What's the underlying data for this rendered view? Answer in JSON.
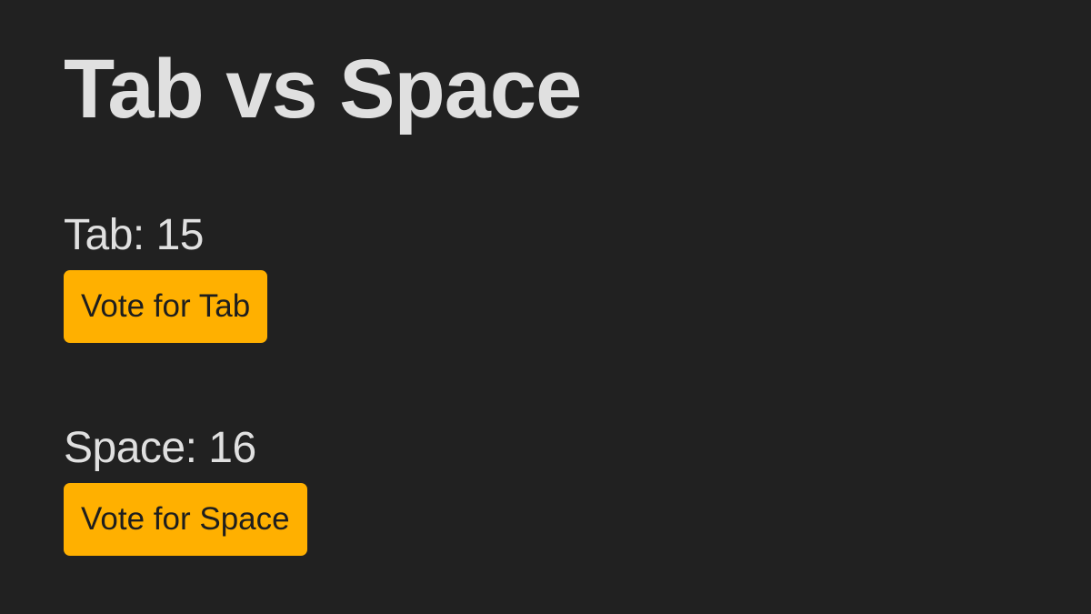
{
  "title": "Tab vs Space",
  "accent_color": "#ffb000",
  "background_color": "#212121",
  "options": [
    {
      "label": "Tab",
      "separator": ": ",
      "count": "15",
      "button_label": "Vote for Tab"
    },
    {
      "label": "Space",
      "separator": ": ",
      "count": "16",
      "button_label": "Vote for Space"
    }
  ]
}
